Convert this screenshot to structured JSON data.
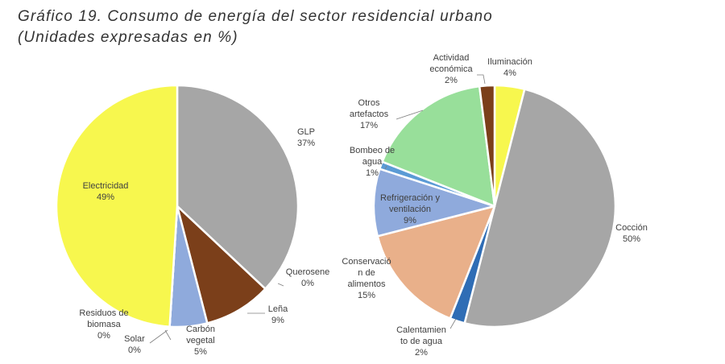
{
  "title_line1": "Gráfico 19. Consumo de energía del sector residencial urbano",
  "title_line2": "(Unidades expresadas en %)",
  "chart_data": [
    {
      "type": "pie",
      "slices": [
        {
          "name": "GLP",
          "value": 37,
          "label_lines": [
            "GLP",
            "37%"
          ],
          "color": "#a6a6a6"
        },
        {
          "name": "Querosene",
          "value": 0,
          "label_lines": [
            "Querosene",
            "0%"
          ],
          "color": "#5b9bd5"
        },
        {
          "name": "Leña",
          "value": 9,
          "label_lines": [
            "Leña",
            "9%"
          ],
          "color": "#7b3f1a"
        },
        {
          "name": "Carbón vegetal",
          "value": 5,
          "label_lines": [
            "Carbón",
            "vegetal",
            "5%"
          ],
          "color": "#8faadc"
        },
        {
          "name": "Solar",
          "value": 0,
          "label_lines": [
            "Solar",
            "0%"
          ],
          "color": "#2f6db5"
        },
        {
          "name": "Residuos de biomasa",
          "value": 0,
          "label_lines": [
            "Residuos de",
            "biomasa",
            "0%"
          ],
          "color": "#e9b08a"
        },
        {
          "name": "Electricidad",
          "value": 49,
          "label_lines": [
            "Electricidad",
            "49%"
          ],
          "color": "#f7f74e"
        }
      ]
    },
    {
      "type": "pie",
      "slices": [
        {
          "name": "Iluminación",
          "value": 4,
          "label_lines": [
            "Iluminación",
            "4%"
          ],
          "color": "#f7f74e"
        },
        {
          "name": "Cocción",
          "value": 50,
          "label_lines": [
            "Cocción",
            "50%"
          ],
          "color": "#a6a6a6"
        },
        {
          "name": "Calentamiento de agua",
          "value": 2,
          "label_lines": [
            "Calentamien",
            "to de agua",
            "2%"
          ],
          "color": "#2f6db5"
        },
        {
          "name": "Conservación de alimentos",
          "value": 15,
          "label_lines": [
            "Conservació",
            "n de",
            "alimentos",
            "15%"
          ],
          "color": "#e9b08a"
        },
        {
          "name": "Refrigeración y ventilación",
          "value": 9,
          "label_lines": [
            "Refrigeración y",
            "ventilación",
            "9%"
          ],
          "color": "#8faadc"
        },
        {
          "name": "Bombeo de agua",
          "value": 1,
          "label_lines": [
            "Bombeo de",
            "agua",
            "1%"
          ],
          "color": "#5b9bd5"
        },
        {
          "name": "Otros artefactos",
          "value": 17,
          "label_lines": [
            "Otros",
            "artefactos",
            "17%"
          ],
          "color": "#98df9a"
        },
        {
          "name": "Actividad económica",
          "value": 2,
          "label_lines": [
            "Actividad",
            "económica",
            "2%"
          ],
          "color": "#7b3f1a"
        }
      ]
    }
  ]
}
